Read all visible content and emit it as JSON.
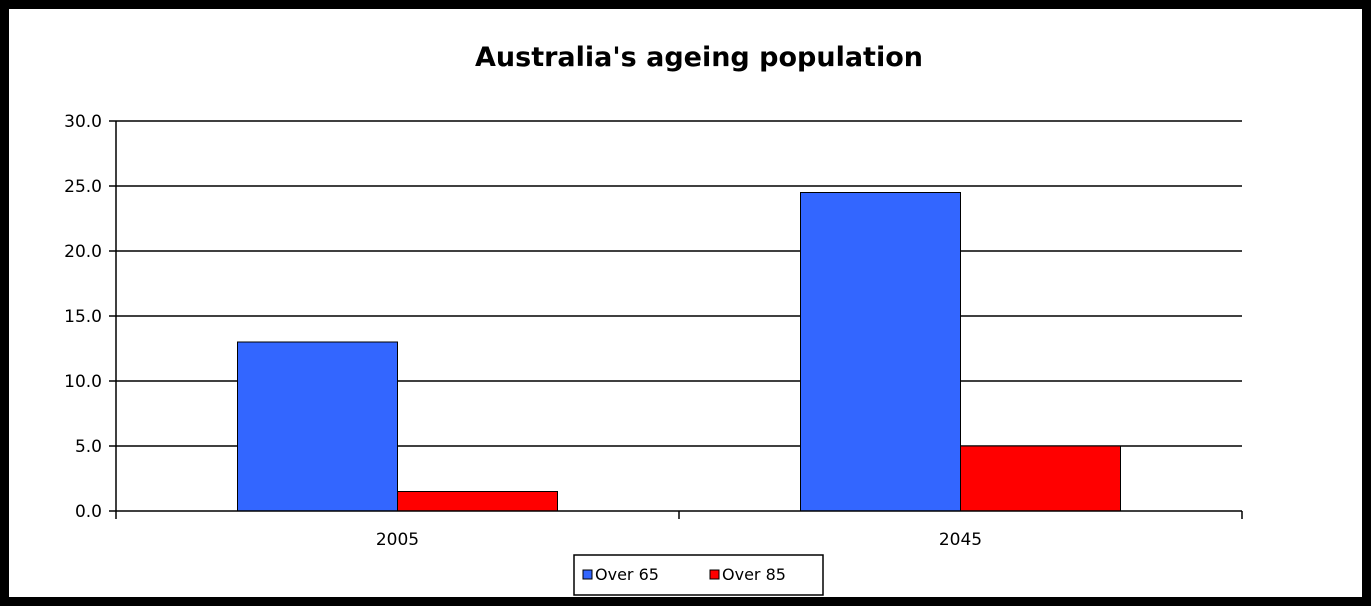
{
  "chart_data": {
    "type": "bar",
    "title": "Australia's ageing population",
    "xlabel": "",
    "ylabel": "",
    "categories": [
      "2005",
      "2045"
    ],
    "series": [
      {
        "name": "Over 65",
        "values": [
          13.0,
          24.5
        ],
        "color": "#3366ff"
      },
      {
        "name": "Over 85",
        "values": [
          1.5,
          5.0
        ],
        "color": "#ff0000"
      }
    ],
    "ylim": [
      0,
      30
    ],
    "yticks": [
      0,
      5,
      10,
      15,
      20,
      25,
      30
    ],
    "ytick_labels": [
      "0.0",
      "5.0",
      "10.0",
      "15.0",
      "20.0",
      "25.0",
      "30.0"
    ],
    "grid": true,
    "legend_position": "bottom"
  }
}
